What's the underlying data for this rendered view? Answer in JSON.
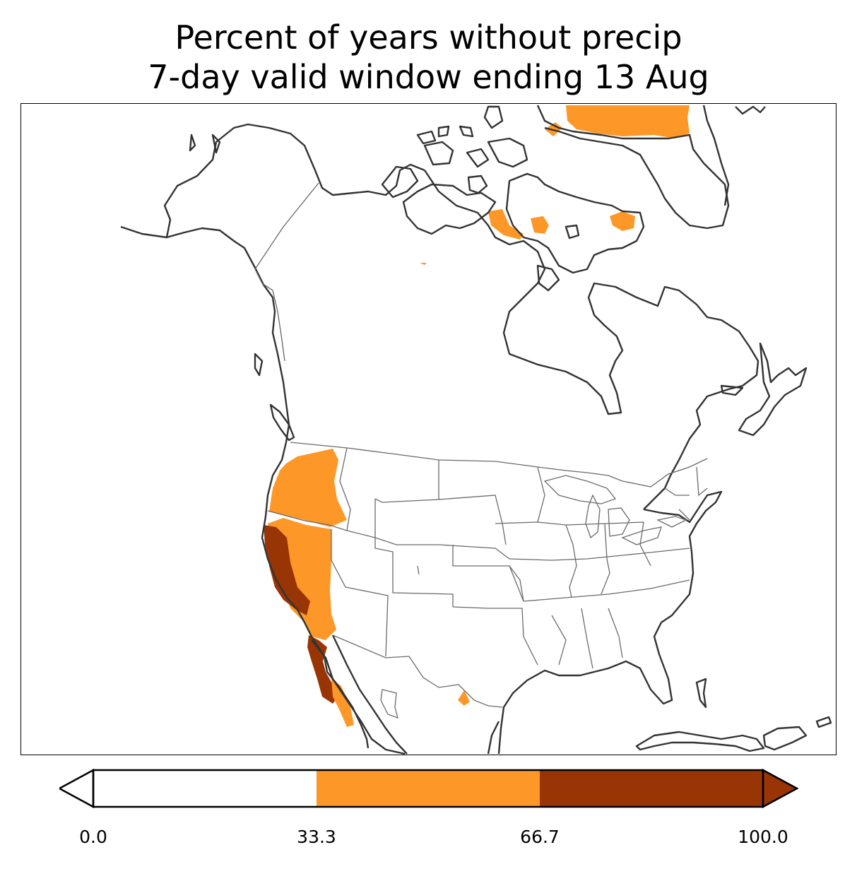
{
  "title": {
    "line1": "Percent of years without precip",
    "line2": "7-day valid window ending 13 Aug"
  },
  "colorbar": {
    "ticks": [
      "0.0",
      "33.3",
      "66.7",
      "100.0"
    ],
    "bins": [
      {
        "range": "0.0-33.3",
        "color": "#ffffff"
      },
      {
        "range": "33.3-66.7",
        "color": "#fd9828"
      },
      {
        "range": "66.7-100.0",
        "color": "#993505"
      }
    ],
    "extend": "both"
  },
  "map": {
    "region": "North America",
    "colors": {
      "mid": "#fd9828",
      "high": "#993505",
      "coast": "#333333",
      "border": "#666666"
    },
    "shaded_regions": [
      {
        "area": "Oregon / Washington interior",
        "bin": "33.3-66.7"
      },
      {
        "area": "Nevada / eastern California",
        "bin": "33.3-66.7"
      },
      {
        "area": "California coast and Central Valley",
        "bin": "66.7-100.0"
      },
      {
        "area": "Baja California",
        "bin": "66.7-100.0"
      },
      {
        "area": "Baja California Sur",
        "bin": "33.3-66.7"
      },
      {
        "area": "Northern Mexico (Coahuila)",
        "bin": "33.3-66.7"
      },
      {
        "area": "Canadian Arctic islands",
        "bin": "33.3-66.7"
      },
      {
        "area": "Northern Greenland",
        "bin": "33.3-66.7"
      }
    ]
  }
}
